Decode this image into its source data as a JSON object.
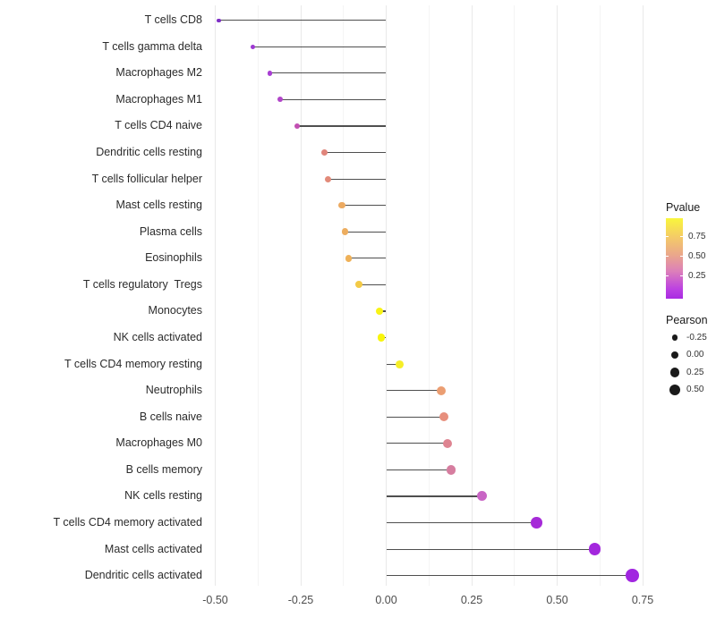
{
  "chart_data": {
    "type": "lollipop",
    "orientation": "horizontal",
    "title": "",
    "xlabel": "",
    "ylabel": "",
    "xlim": [
      -0.55,
      0.78
    ],
    "grid": "vertical-only",
    "x_ticks": [
      {
        "value": -0.5,
        "label": "-0.50"
      },
      {
        "value": -0.25,
        "label": "-0.25"
      },
      {
        "value": 0.0,
        "label": "0.00"
      },
      {
        "value": 0.25,
        "label": "0.25"
      },
      {
        "value": 0.5,
        "label": "0.50"
      },
      {
        "value": 0.75,
        "label": "0.75"
      }
    ],
    "rows": [
      {
        "label": "T cells CD8",
        "pearson": -0.49,
        "color": "#7e2fc6"
      },
      {
        "label": "T cells gamma delta",
        "pearson": -0.39,
        "color": "#9d39d2"
      },
      {
        "label": "Macrophages M2",
        "pearson": -0.34,
        "color": "#a83ed3"
      },
      {
        "label": "Macrophages M1",
        "pearson": -0.31,
        "color": "#b145c9"
      },
      {
        "label": "T cells CD4 naive",
        "pearson": -0.26,
        "color": "#c24fb2"
      },
      {
        "label": "Dendritic cells resting",
        "pearson": -0.18,
        "color": "#e0857b"
      },
      {
        "label": "T cells follicular helper",
        "pearson": -0.17,
        "color": "#e28a79"
      },
      {
        "label": "Mast cells resting",
        "pearson": -0.13,
        "color": "#ecaa61"
      },
      {
        "label": "Plasma cells",
        "pearson": -0.12,
        "color": "#edad5f"
      },
      {
        "label": "Eosinophils",
        "pearson": -0.11,
        "color": "#efb158"
      },
      {
        "label": "T cells regulatory  Tregs",
        "pearson": -0.08,
        "color": "#f3ca46"
      },
      {
        "label": "Monocytes",
        "pearson": -0.02,
        "color": "#f8f316"
      },
      {
        "label": "NK cells activated",
        "pearson": -0.015,
        "color": "#f8f50c"
      },
      {
        "label": "T cells CD4 memory resting",
        "pearson": 0.04,
        "color": "#f6ee27"
      },
      {
        "label": "Neutrophils",
        "pearson": 0.16,
        "color": "#eb9e72"
      },
      {
        "label": "B cells naive",
        "pearson": 0.17,
        "color": "#e78f7d"
      },
      {
        "label": "Macrophages M0",
        "pearson": 0.18,
        "color": "#de8491"
      },
      {
        "label": "B cells memory",
        "pearson": 0.19,
        "color": "#d67d9f"
      },
      {
        "label": "NK cells resting",
        "pearson": 0.28,
        "color": "#c965c5"
      },
      {
        "label": "T cells CD4 memory activated",
        "pearson": 0.44,
        "color": "#a62ad8"
      },
      {
        "label": "Mast cells activated",
        "pearson": 0.61,
        "color": "#a327dd"
      },
      {
        "label": "Dendritic cells activated",
        "pearson": 0.72,
        "color": "#a126e0"
      }
    ],
    "color_legend": {
      "title": "Pvalue",
      "gradient_top_color": "#f9f63c",
      "gradient_bottom_color": "#a92ae2",
      "ticks": [
        {
          "label": "0.75",
          "frac_from_top": 0.23
        },
        {
          "label": "0.50",
          "frac_from_top": 0.475
        },
        {
          "label": "0.25",
          "frac_from_top": 0.72
        }
      ]
    },
    "size_legend": {
      "title": "Pearson",
      "keys": [
        {
          "label": "-0.25",
          "value": -0.25
        },
        {
          "label": "0.00",
          "value": 0.0
        },
        {
          "label": "0.25",
          "value": 0.25
        },
        {
          "label": "0.50",
          "value": 0.5
        }
      ]
    }
  },
  "legend": {
    "pvalue_title": "Pvalue",
    "pearson_title": "Pearson"
  }
}
